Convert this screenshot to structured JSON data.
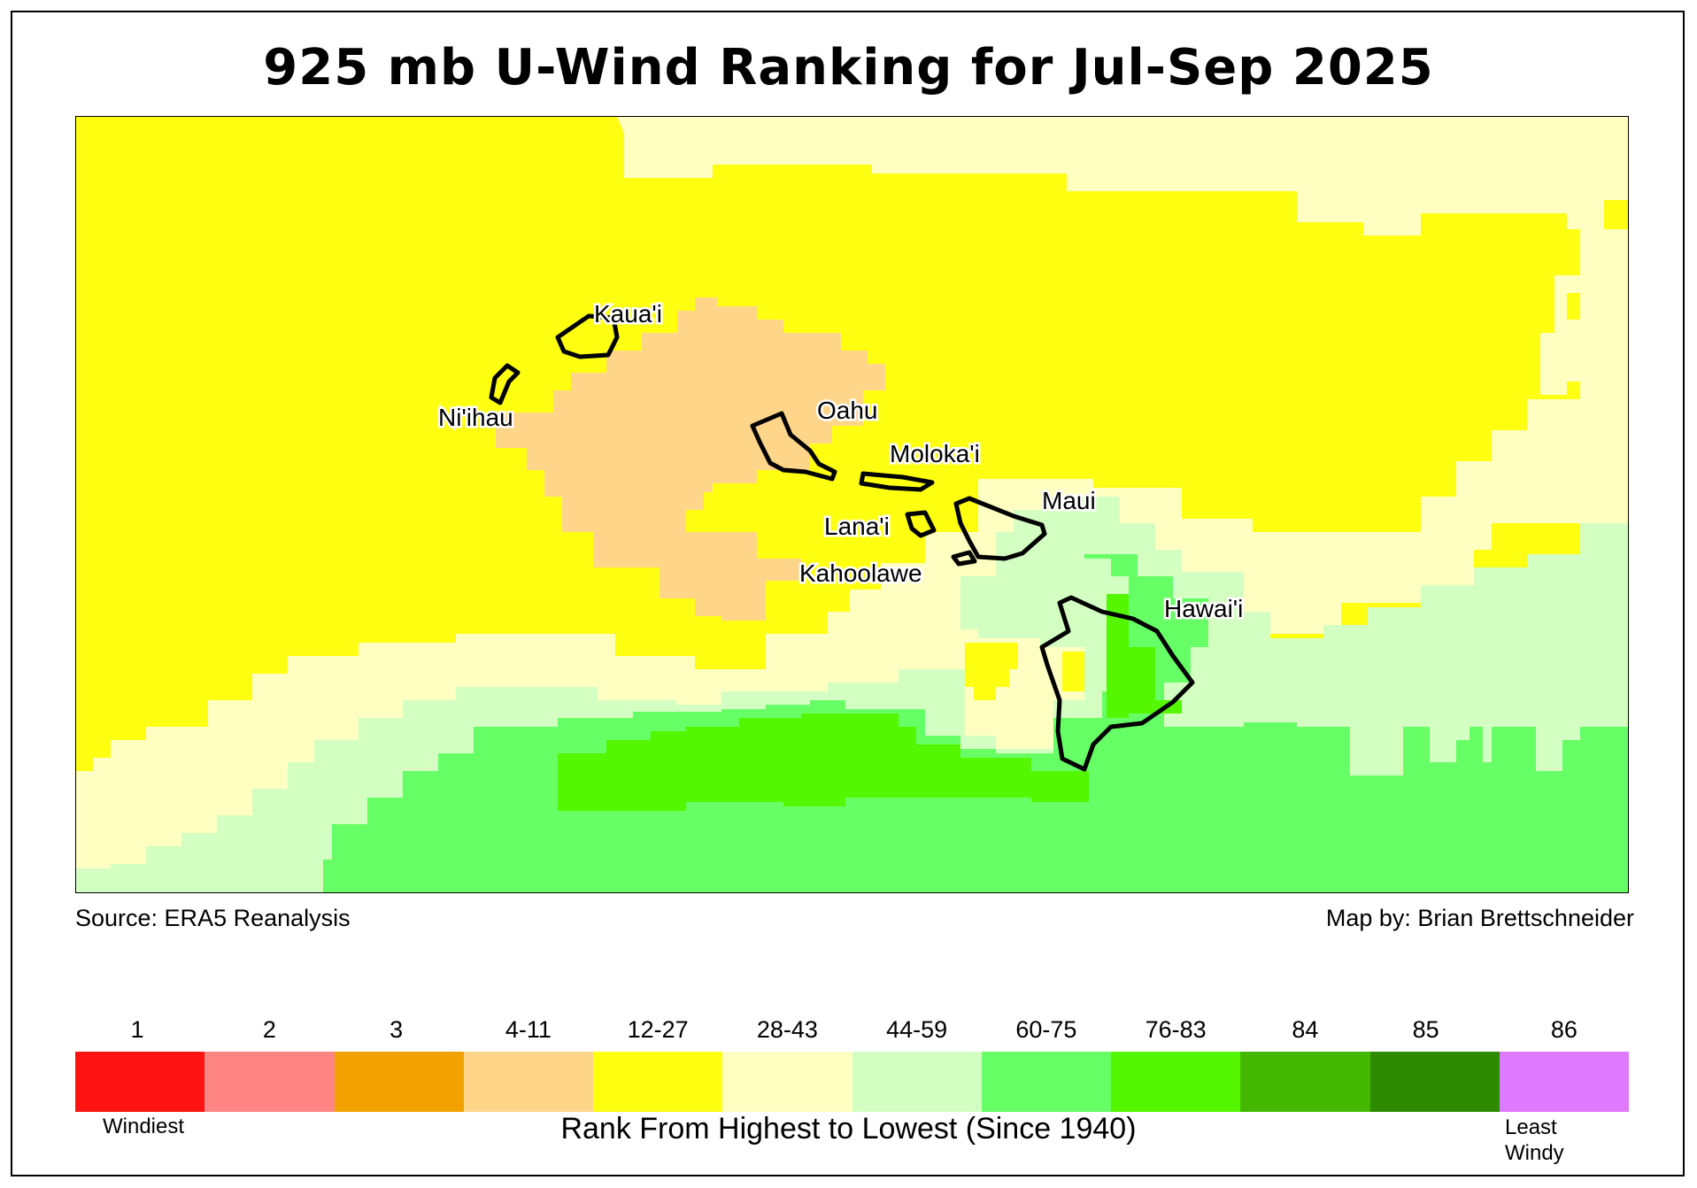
{
  "title": "925 mb U-Wind Ranking for Jul-Sep 2025",
  "source": "Source: ERA5 Reanalysis",
  "credit": "Map by: Brian Brettschneider",
  "islands": [
    "Kaua'i",
    "Ni'ihau",
    "Oahu",
    "Moloka'i",
    "Lana'i",
    "Maui",
    "Kahoolawe",
    "Hawai'i"
  ],
  "legend": {
    "items": [
      {
        "label": "1",
        "color": "#ff1212"
      },
      {
        "label": "2",
        "color": "#ff8585"
      },
      {
        "label": "3",
        "color": "#f2a200"
      },
      {
        "label": "4-11",
        "color": "#ffd58a"
      },
      {
        "label": "12-27",
        "color": "#ffff12"
      },
      {
        "label": "28-43",
        "color": "#ffffc2"
      },
      {
        "label": "44-59",
        "color": "#d4ffc2"
      },
      {
        "label": "60-75",
        "color": "#66ff66"
      },
      {
        "label": "76-83",
        "color": "#55f700"
      },
      {
        "label": "84",
        "color": "#44b800"
      },
      {
        "label": "85",
        "color": "#2e8a00"
      },
      {
        "label": "86",
        "color": "#df7aff"
      }
    ],
    "low_end": "Windiest",
    "high_end": "Least Windy",
    "caption": "Rank From Highest to Lowest (Since 1940)"
  }
}
